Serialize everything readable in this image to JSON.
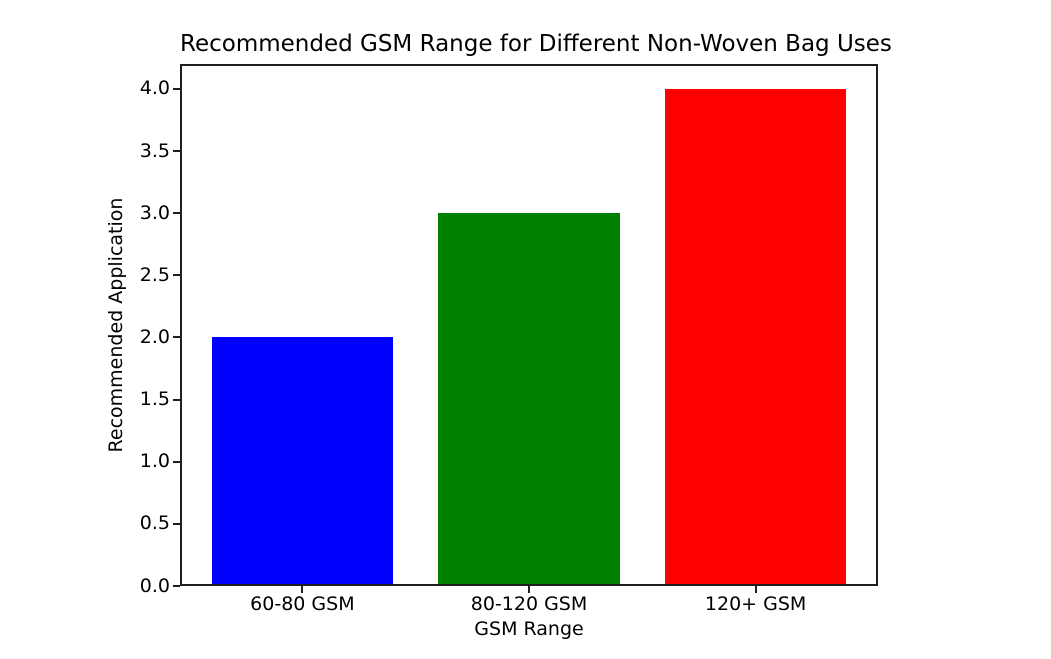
{
  "chart_data": {
    "type": "bar",
    "title": "Recommended GSM Range for Different Non-Woven Bag Uses",
    "xlabel": "GSM Range",
    "ylabel": "Recommended Application",
    "categories": [
      "60-80 GSM",
      "80-120 GSM",
      "120+ GSM"
    ],
    "values": [
      2,
      3,
      4
    ],
    "bar_colors": [
      "#0000ff",
      "#008000",
      "#ff0000"
    ],
    "yticks": [
      0.0,
      0.5,
      1.0,
      1.5,
      2.0,
      2.5,
      3.0,
      3.5,
      4.0
    ],
    "ytick_labels": [
      "0.0",
      "0.5",
      "1.0",
      "1.5",
      "2.0",
      "2.5",
      "3.0",
      "3.5",
      "4.0"
    ],
    "ylim": [
      0,
      4.2
    ],
    "xlim": [
      -0.54,
      2.54
    ],
    "bar_width": 0.8,
    "grid": false,
    "legend": "none",
    "background_color": "#ffffff",
    "text_color": "#000000",
    "spine_color": "#1f1f1f"
  }
}
